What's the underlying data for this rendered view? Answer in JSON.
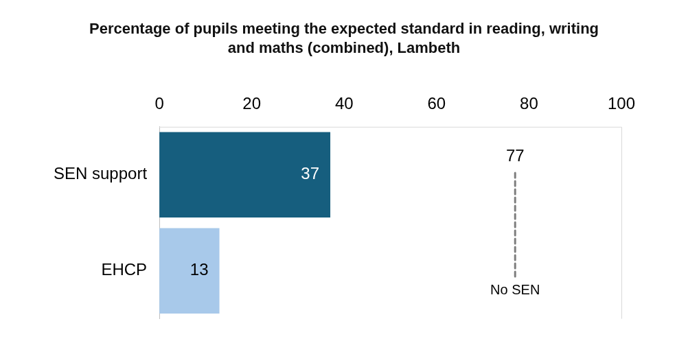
{
  "chart_data": {
    "type": "bar",
    "orientation": "horizontal",
    "title": "Percentage of pupils meeting the expected standard in reading, writing and maths (combined), Lambeth",
    "categories": [
      "SEN support",
      "EHCP"
    ],
    "values": [
      37,
      13
    ],
    "colors": [
      "#165e7e",
      "#a8c9ea"
    ],
    "xlim": [
      0,
      100
    ],
    "xticks": [
      0,
      20,
      40,
      60,
      80,
      100
    ],
    "data_labels": true,
    "annotations": [
      "77"
    ],
    "grid": false,
    "legend": false,
    "ref_lines": [
      {
        "axis": "x",
        "value": 77,
        "label": "No SEN",
        "color": "#7f7f7f",
        "line_style": "dashed"
      }
    ]
  }
}
